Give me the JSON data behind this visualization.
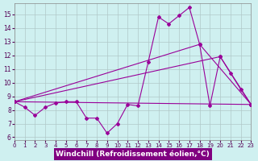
{
  "background_color": "#cff0f0",
  "xlabel_bg_color": "#800080",
  "line_color": "#990099",
  "grid_color": "#b0c8c8",
  "xlabel": "Windchill (Refroidissement éolien,°C)",
  "xlabel_fontsize": 6.5,
  "ylabel_ticks": [
    6,
    7,
    8,
    9,
    10,
    11,
    12,
    13,
    14,
    15
  ],
  "xlabel_ticks": [
    0,
    1,
    2,
    3,
    4,
    5,
    6,
    7,
    8,
    9,
    10,
    11,
    12,
    13,
    14,
    15,
    16,
    17,
    18,
    19,
    20,
    21,
    22,
    23
  ],
  "main_series": {
    "x": [
      0,
      1,
      2,
      3,
      4,
      5,
      6,
      7,
      8,
      9,
      10,
      11,
      12,
      13,
      14,
      15,
      16,
      17,
      18,
      19,
      20,
      21,
      22,
      23
    ],
    "y": [
      8.6,
      8.2,
      7.6,
      8.2,
      8.5,
      8.6,
      8.6,
      7.4,
      7.4,
      6.3,
      7.0,
      8.4,
      8.3,
      11.5,
      14.8,
      14.3,
      14.9,
      15.5,
      12.8,
      8.3,
      11.9,
      10.7,
      9.5,
      8.4
    ]
  },
  "connector_lines": [
    {
      "x": [
        0,
        23
      ],
      "y": [
        8.6,
        8.4
      ]
    },
    {
      "x": [
        0,
        20,
        23
      ],
      "y": [
        8.6,
        11.9,
        8.4
      ]
    },
    {
      "x": [
        0,
        18,
        23
      ],
      "y": [
        8.6,
        12.8,
        8.4
      ]
    }
  ],
  "xlim": [
    0,
    23
  ],
  "ylim": [
    5.8,
    15.8
  ]
}
